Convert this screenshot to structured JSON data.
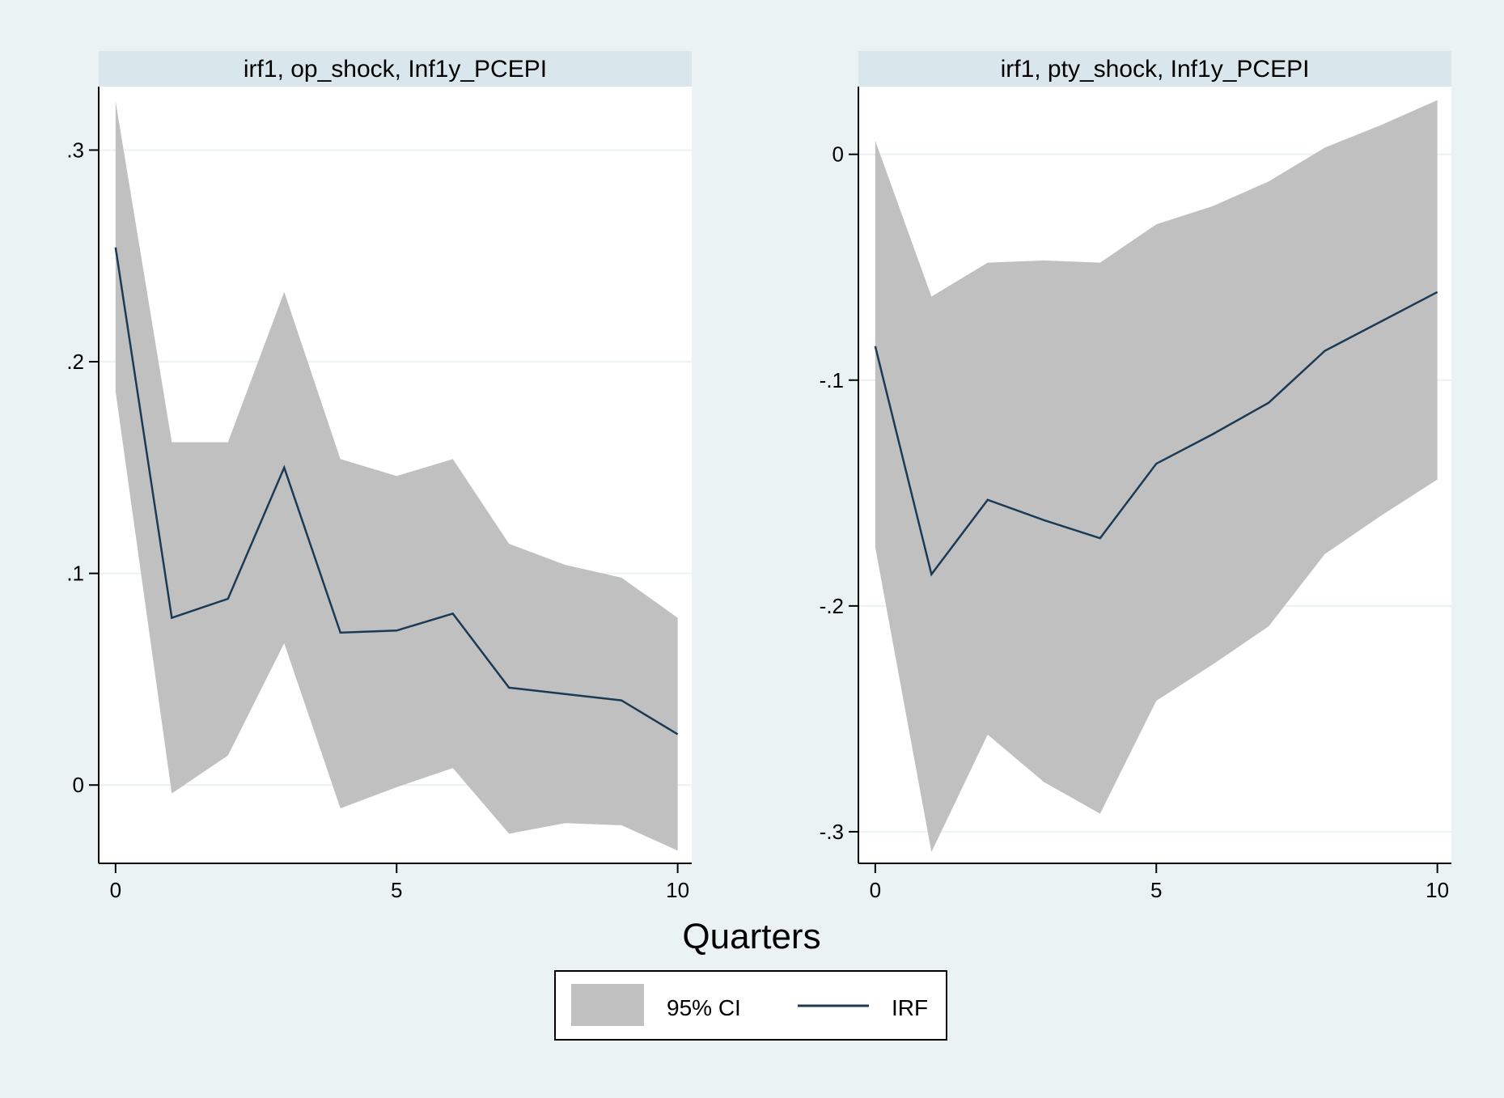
{
  "chart_data": [
    {
      "type": "area",
      "title": "irf1, op_shock, Inf1y_PCEPI",
      "x": [
        0,
        1,
        2,
        3,
        4,
        5,
        6,
        7,
        8,
        9,
        10
      ],
      "xticks": [
        0,
        5,
        10
      ],
      "xtick_labels": [
        "0",
        "5",
        "10"
      ],
      "xlim": [
        -0.3,
        10.25
      ],
      "yticks": [
        0,
        0.1,
        0.2,
        0.3
      ],
      "ytick_labels": [
        "0",
        ".1",
        ".2",
        ".3"
      ],
      "ylim": [
        -0.037,
        0.33
      ],
      "grid": true,
      "series": [
        {
          "name": "IRF",
          "values": [
            0.254,
            0.079,
            0.088,
            0.15,
            0.072,
            0.073,
            0.081,
            0.046,
            0.043,
            0.04,
            0.024
          ]
        },
        {
          "name": "95% CI",
          "lower": [
            0.186,
            -0.004,
            0.014,
            0.067,
            -0.011,
            -0.001,
            0.008,
            -0.023,
            -0.018,
            -0.019,
            -0.031
          ],
          "upper": [
            0.323,
            0.162,
            0.162,
            0.233,
            0.154,
            0.146,
            0.154,
            0.114,
            0.104,
            0.098,
            0.079
          ]
        }
      ]
    },
    {
      "type": "area",
      "title": "irf1, pty_shock, Inf1y_PCEPI",
      "x": [
        0,
        1,
        2,
        3,
        4,
        5,
        6,
        7,
        8,
        9,
        10
      ],
      "xticks": [
        0,
        5,
        10
      ],
      "xtick_labels": [
        "0",
        "5",
        "10"
      ],
      "xlim": [
        -0.3,
        10.25
      ],
      "yticks": [
        0,
        -0.1,
        -0.2,
        -0.3
      ],
      "ytick_labels": [
        "0",
        "-.1",
        "-.2",
        "-.3"
      ],
      "ylim": [
        -0.314,
        0.03
      ],
      "grid": true,
      "series": [
        {
          "name": "IRF",
          "values": [
            -0.085,
            -0.186,
            -0.153,
            -0.162,
            -0.17,
            -0.137,
            -0.124,
            -0.11,
            -0.087,
            -0.074,
            -0.061
          ]
        },
        {
          "name": "95% CI",
          "lower": [
            -0.174,
            -0.309,
            -0.257,
            -0.278,
            -0.292,
            -0.242,
            -0.226,
            -0.209,
            -0.177,
            -0.16,
            -0.144
          ],
          "upper": [
            0.006,
            -0.063,
            -0.048,
            -0.047,
            -0.048,
            -0.031,
            -0.023,
            -0.012,
            0.003,
            0.013,
            0.024
          ]
        }
      ]
    }
  ],
  "xlabel": "Quarters",
  "legend": {
    "position": "bottom",
    "items": [
      {
        "label": "95% CI",
        "kind": "area",
        "color": "#c0c0c0"
      },
      {
        "label": "IRF",
        "kind": "line",
        "color": "#1a3a56"
      }
    ]
  },
  "colors": {
    "background": "#eaf2f3",
    "plot_bg": "#ffffff",
    "title_bg": "#d9e6eb",
    "grid": "#eaf2f3",
    "ci": "#c0c0c0",
    "irf": "#1a3a56"
  }
}
